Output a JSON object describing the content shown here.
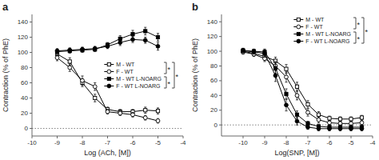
{
  "chart_data": [
    {
      "type": "line",
      "title": "a",
      "xlabel": "Log (ACh, [M])",
      "ylabel": "Contraction (% of PhE)",
      "xlim": [
        -10,
        -4
      ],
      "ylim": [
        -10,
        150
      ],
      "xticks": [
        -10,
        -9,
        -8,
        -7,
        -6,
        -5,
        -4
      ],
      "yticks": [
        0,
        20,
        40,
        60,
        80,
        100,
        120,
        140
      ],
      "hlines": [
        0
      ],
      "legend": "center right",
      "series": [
        {
          "name": "M - WT",
          "color": "#000000",
          "marker": "open-square",
          "x": [
            -9,
            -8.5,
            -8,
            -7.5,
            -7,
            -6.5,
            -6,
            -5.5,
            -5
          ],
          "values": [
            98,
            88,
            60,
            40,
            25,
            22,
            22,
            24,
            23
          ],
          "errors": [
            3,
            5,
            5,
            5,
            3,
            3,
            3,
            4,
            4
          ]
        },
        {
          "name": "F - WT",
          "color": "#000000",
          "marker": "open-circle",
          "x": [
            -9,
            -8.5,
            -8,
            -7.5,
            -7,
            -6.5,
            -6,
            -5.5,
            -5
          ],
          "values": [
            93,
            80,
            63,
            55,
            22,
            20,
            18,
            14,
            10
          ],
          "errors": [
            4,
            5,
            6,
            5,
            3,
            3,
            3,
            3,
            3
          ]
        },
        {
          "name": "M - WT L-NOARG",
          "color": "#000000",
          "marker": "square",
          "x": [
            -9,
            -8.5,
            -8,
            -7.5,
            -7,
            -6.5,
            -6,
            -5.5,
            -5
          ],
          "values": [
            101,
            102,
            103,
            104,
            110,
            118,
            124,
            128,
            120
          ],
          "errors": [
            3,
            3,
            3,
            3,
            3,
            4,
            5,
            5,
            5
          ]
        },
        {
          "name": "F - WT L-NOARG",
          "color": "#000000",
          "marker": "circle",
          "x": [
            -9,
            -8.5,
            -8,
            -7.5,
            -7,
            -6.5,
            -6,
            -5.5,
            -5
          ],
          "values": [
            102,
            103,
            104,
            105,
            108,
            113,
            117,
            116,
            108
          ],
          "errors": [
            3,
            3,
            3,
            3,
            3,
            4,
            4,
            4,
            5
          ]
        }
      ],
      "annotations": [
        "*",
        "*",
        "*"
      ]
    },
    {
      "type": "line",
      "title": "b",
      "xlabel": "Log(SNP, [M])",
      "ylabel": "Contraction (% of PhE)",
      "xlim": [
        -11,
        -4
      ],
      "ylim": [
        -15,
        150
      ],
      "xticks": [
        -10,
        -9,
        -8,
        -7,
        -6,
        -5,
        -4
      ],
      "yticks": [
        0,
        20,
        40,
        60,
        80,
        100,
        120,
        140
      ],
      "hlines": [
        0
      ],
      "legend": "upper right",
      "series": [
        {
          "name": "M - WT",
          "color": "#000000",
          "marker": "open-square",
          "x": [
            -10,
            -9.5,
            -9,
            -8.5,
            -8,
            -7.5,
            -7,
            -6.5,
            -6,
            -5.5,
            -5,
            -4.5
          ],
          "values": [
            100,
            97,
            93,
            87,
            76,
            52,
            28,
            14,
            9,
            8,
            8,
            10
          ],
          "errors": [
            3,
            3,
            4,
            5,
            6,
            6,
            5,
            4,
            3,
            3,
            3,
            3
          ]
        },
        {
          "name": "F - WT",
          "color": "#000000",
          "marker": "open-circle",
          "x": [
            -10,
            -9.5,
            -9,
            -8.5,
            -8,
            -7.5,
            -7,
            -6.5,
            -6,
            -5.5,
            -5,
            -4.5
          ],
          "values": [
            99,
            96,
            90,
            80,
            65,
            40,
            17,
            7,
            3,
            2,
            2,
            3
          ],
          "errors": [
            3,
            3,
            4,
            6,
            7,
            6,
            5,
            4,
            3,
            3,
            3,
            3
          ]
        },
        {
          "name": "M - WT L-NOARG",
          "color": "#000000",
          "marker": "square",
          "x": [
            -10,
            -9.5,
            -9,
            -8.5,
            -8,
            -7.5,
            -7,
            -6.5,
            -6,
            -5.5,
            -5,
            -4.5
          ],
          "values": [
            101,
            100,
            99,
            77,
            42,
            14,
            2,
            -2,
            -3,
            -3,
            -3,
            -3
          ],
          "errors": [
            3,
            3,
            4,
            7,
            7,
            5,
            3,
            3,
            3,
            3,
            3,
            3
          ]
        },
        {
          "name": "F - WT L-NOARG",
          "color": "#000000",
          "marker": "circle",
          "x": [
            -10,
            -9.5,
            -9,
            -8.5,
            -8,
            -7.5,
            -7,
            -6.5,
            -6,
            -5.5,
            -5,
            -4.5
          ],
          "values": [
            101,
            99,
            97,
            67,
            27,
            5,
            -3,
            -5,
            -5,
            -5,
            -5,
            -5
          ],
          "errors": [
            3,
            3,
            5,
            8,
            8,
            5,
            3,
            3,
            3,
            3,
            3,
            3
          ]
        }
      ],
      "annotations": [
        "*",
        "*",
        "*"
      ]
    }
  ]
}
